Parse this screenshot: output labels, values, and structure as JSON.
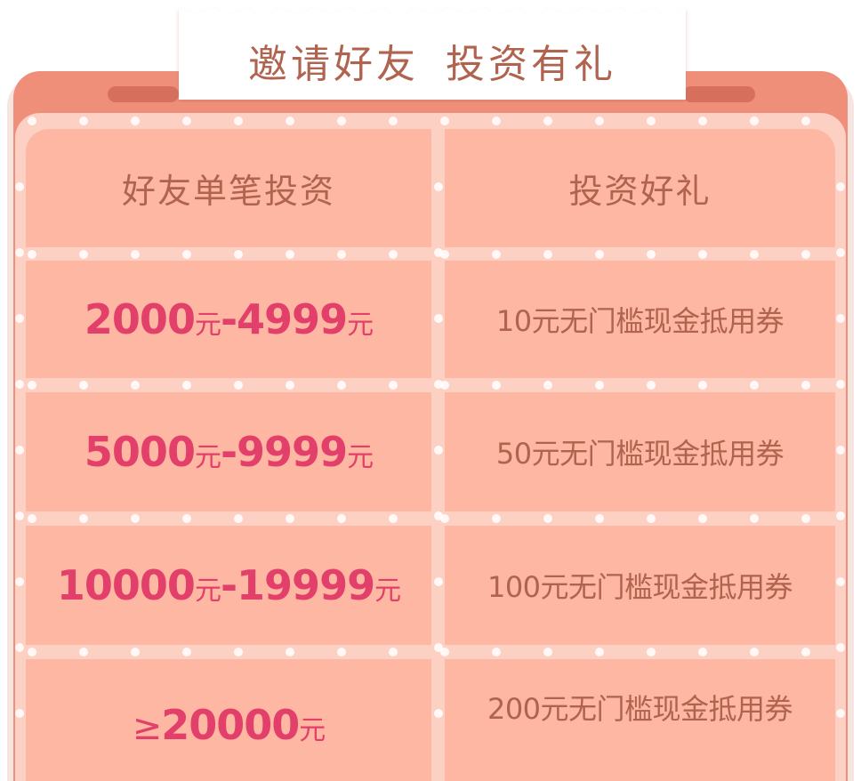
{
  "title": {
    "left": "邀请好友",
    "right": "投资有礼"
  },
  "table": {
    "headers": [
      "好友单笔投资",
      "投资好礼"
    ],
    "rows": [
      {
        "range_a": "2000",
        "unit_a": "元",
        "sep": "-",
        "range_b": "4999",
        "unit_b": "元",
        "reward": "10元无门槛现金抵用券"
      },
      {
        "range_a": "5000",
        "unit_a": "元",
        "sep": "-",
        "range_b": "9999",
        "unit_b": "元",
        "reward": "50元无门槛现金抵用券"
      },
      {
        "range_a": "10000",
        "unit_a": "元",
        "sep": "-",
        "range_b": "19999",
        "unit_b": "元",
        "reward": "100元无门槛现金抵用券"
      },
      {
        "prefix": "≥",
        "range_a": "20000",
        "unit_a": "元",
        "reward": "200元无门槛现金抵用券"
      }
    ]
  },
  "colors": {
    "frame": "#ef8f79",
    "inner": "#fcd0c2",
    "cell": "#fdb7a2",
    "head_text": "#b0634e",
    "amount_text": "#e23f6a"
  }
}
